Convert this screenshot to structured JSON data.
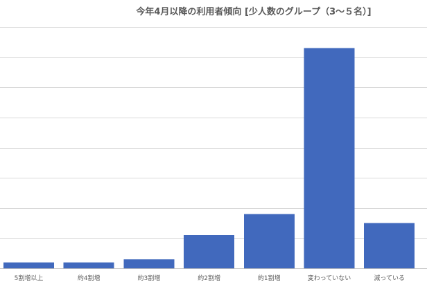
{
  "chart_data": {
    "type": "bar",
    "title": "今年4月以降の利用者傾向 [少人数のグループ（3～５名）]",
    "categories": [
      "5割増以上",
      "約4割増",
      "約3割増",
      "約2割増",
      "約1割増",
      "変わっていない",
      "減っている"
    ],
    "values": [
      2,
      2,
      3,
      11,
      18,
      73,
      15
    ],
    "xlabel": "",
    "ylabel": "",
    "ylim": [
      0,
      80
    ],
    "grid": true,
    "legend": "none",
    "bar_color": "#4169bd"
  }
}
